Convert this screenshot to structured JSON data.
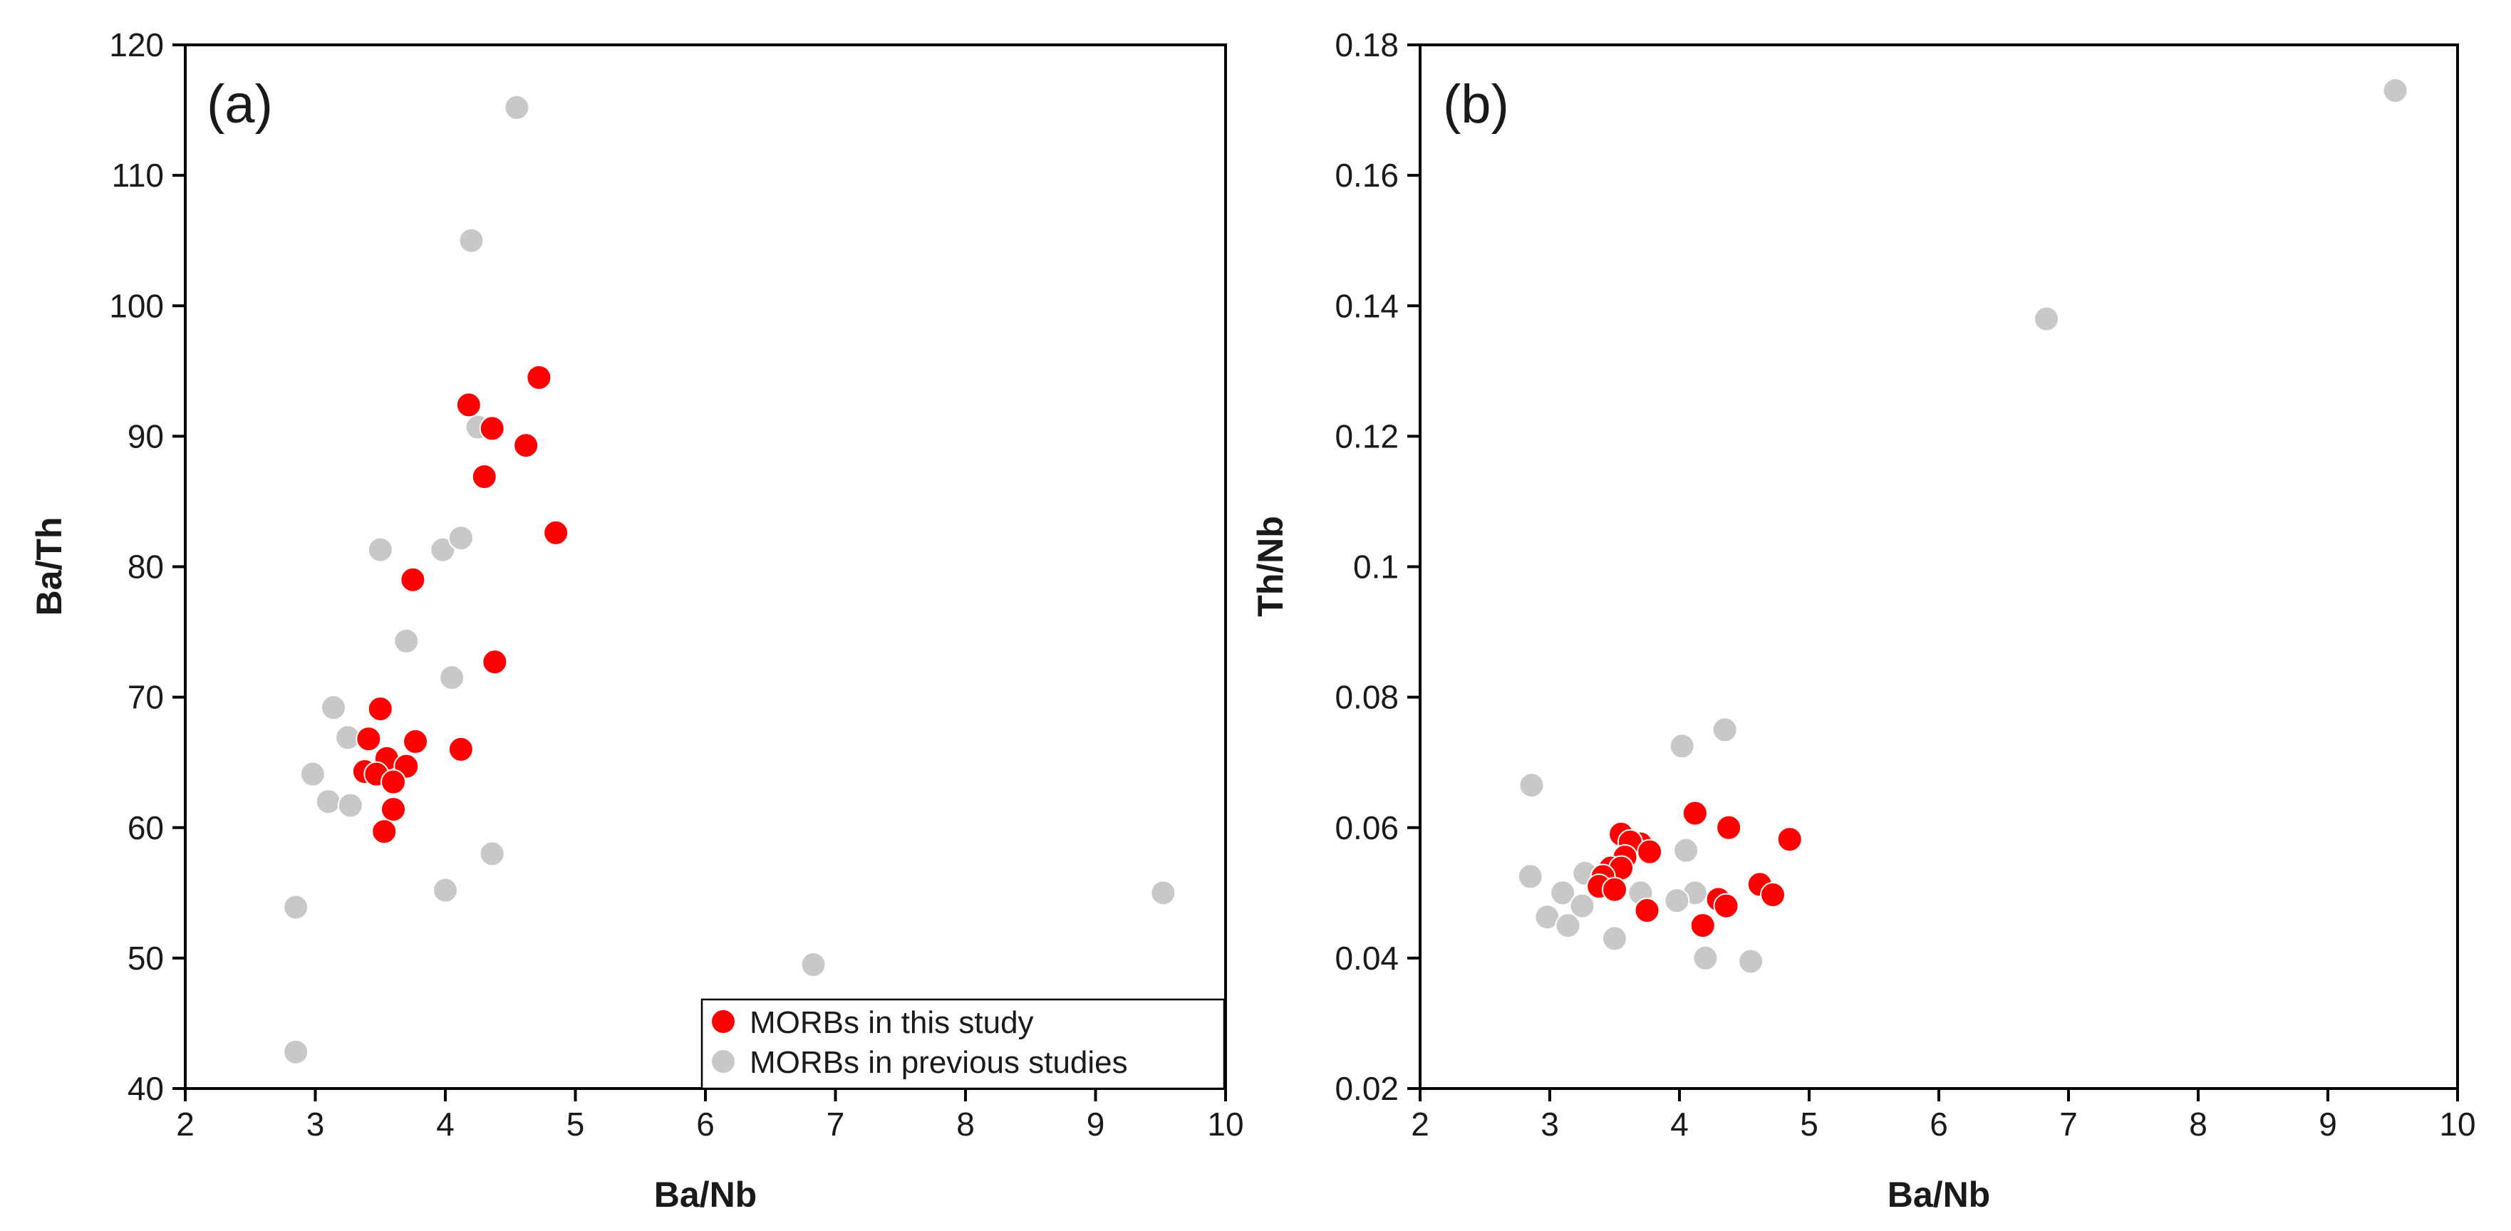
{
  "chart_data": [
    {
      "panel": "(a)",
      "type": "scatter",
      "xlabel": "Ba/Nb",
      "ylabel": "Ba/Th",
      "xlim": [
        2,
        10
      ],
      "ylim": [
        40,
        120
      ],
      "xticks": [
        "2",
        "3",
        "4",
        "5",
        "6",
        "7",
        "8",
        "9",
        "10"
      ],
      "yticks": [
        "40",
        "50",
        "60",
        "70",
        "80",
        "90",
        "100",
        "110",
        "120"
      ],
      "grid": false,
      "legend": {
        "position": "bottom-right",
        "entries": [
          "MORBs in this study",
          "MORBs in previous studies"
        ]
      },
      "series": [
        {
          "name": "MORBs in previous studies",
          "color": "#c8c8c8",
          "points": [
            [
              4.55,
              115.2
            ],
            [
              4.2,
              105
            ],
            [
              4.25,
              90.7
            ],
            [
              3.5,
              81.3
            ],
            [
              3.98,
              81.3
            ],
            [
              4.12,
              82.2
            ],
            [
              3.7,
              74.3
            ],
            [
              4.05,
              71.5
            ],
            [
              3.14,
              69.2
            ],
            [
              3.25,
              66.9
            ],
            [
              2.98,
              64.1
            ],
            [
              3.1,
              62
            ],
            [
              3.27,
              61.7
            ],
            [
              4.0,
              55.2
            ],
            [
              4.36,
              58
            ],
            [
              2.85,
              53.9
            ],
            [
              2.85,
              42.8
            ],
            [
              6.83,
              49.5
            ],
            [
              9.52,
              55
            ]
          ]
        },
        {
          "name": "MORBs in this study",
          "color": "#ff0000",
          "points": [
            [
              4.72,
              94.5
            ],
            [
              4.18,
              92.4
            ],
            [
              4.36,
              90.6
            ],
            [
              4.62,
              89.3
            ],
            [
              4.3,
              86.9
            ],
            [
              4.85,
              82.6
            ],
            [
              3.75,
              79
            ],
            [
              4.38,
              72.7
            ],
            [
              3.5,
              69.1
            ],
            [
              3.41,
              66.8
            ],
            [
              3.77,
              66.6
            ],
            [
              4.12,
              66
            ],
            [
              3.55,
              65.3
            ],
            [
              3.7,
              64.7
            ],
            [
              3.38,
              64.3
            ],
            [
              3.47,
              64.1
            ],
            [
              3.6,
              63.5
            ],
            [
              3.6,
              61.4
            ],
            [
              3.53,
              59.7
            ]
          ]
        }
      ]
    },
    {
      "panel": "(b)",
      "type": "scatter",
      "xlabel": "Ba/Nb",
      "ylabel": "Th/Nb",
      "xlim": [
        2,
        10
      ],
      "ylim": [
        0.02,
        0.18
      ],
      "xticks": [
        "2",
        "3",
        "4",
        "5",
        "6",
        "7",
        "8",
        "9",
        "10"
      ],
      "yticks": [
        "0.02",
        "0.04",
        "0.06",
        "0.08",
        "0.1",
        "0.12",
        "0.14",
        "0.16",
        "0.18"
      ],
      "grid": false,
      "series": [
        {
          "name": "MORBs in previous studies",
          "color": "#c8c8c8",
          "points": [
            [
              9.52,
              0.173
            ],
            [
              6.83,
              0.138
            ],
            [
              4.35,
              0.075
            ],
            [
              4.02,
              0.0725
            ],
            [
              2.86,
              0.0665
            ],
            [
              4.05,
              0.0565
            ],
            [
              2.85,
              0.0525
            ],
            [
              3.27,
              0.053
            ],
            [
              3.1,
              0.05
            ],
            [
              3.7,
              0.05
            ],
            [
              4.12,
              0.05
            ],
            [
              3.98,
              0.0488
            ],
            [
              3.25,
              0.048
            ],
            [
              2.98,
              0.0463
            ],
            [
              3.14,
              0.045
            ],
            [
              3.5,
              0.043
            ],
            [
              4.2,
              0.04
            ],
            [
              4.55,
              0.0395
            ]
          ]
        },
        {
          "name": "MORBs in this study",
          "color": "#ff0000",
          "points": [
            [
              4.12,
              0.0622
            ],
            [
              4.38,
              0.06
            ],
            [
              3.55,
              0.059
            ],
            [
              4.85,
              0.0582
            ],
            [
              3.7,
              0.0575
            ],
            [
              3.62,
              0.0578
            ],
            [
              3.77,
              0.0563
            ],
            [
              3.58,
              0.0555
            ],
            [
              3.47,
              0.0538
            ],
            [
              3.55,
              0.0538
            ],
            [
              3.41,
              0.0525
            ],
            [
              3.38,
              0.051
            ],
            [
              3.5,
              0.0505
            ],
            [
              4.62,
              0.0513
            ],
            [
              4.72,
              0.0497
            ],
            [
              4.3,
              0.049
            ],
            [
              4.36,
              0.048
            ],
            [
              3.75,
              0.0473
            ],
            [
              4.18,
              0.045
            ]
          ]
        }
      ]
    }
  ]
}
